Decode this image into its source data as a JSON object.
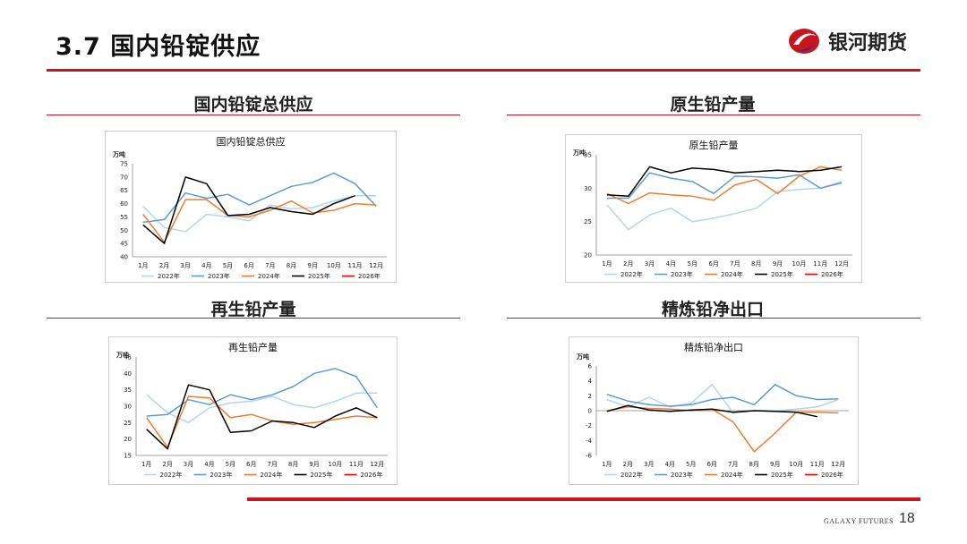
{
  "slide": {
    "title": "3.7  国内铅锭供应",
    "brand": "银河期货",
    "footer_brand": "GALAXY FUTURES",
    "page_number": "18"
  },
  "sections": [
    {
      "title": "国内铅锭总供应"
    },
    {
      "title": "原生铅产量"
    },
    {
      "title": "再生铅产量"
    },
    {
      "title": "精炼铅净出口"
    }
  ],
  "colors": {
    "accent": "#c8141e",
    "2022年": "#b8d4ea",
    "2023年": "#5b9bd5",
    "2024年": "#ed7d31",
    "2025年": "#000000",
    "2026年": "#ff0000"
  },
  "chart_data": [
    {
      "type": "line",
      "title": "国内铅锭总供应",
      "ylabel": "万吨",
      "categories": [
        "1月",
        "2月",
        "3月",
        "4月",
        "5月",
        "6月",
        "7月",
        "8月",
        "9月",
        "10月",
        "11月",
        "12月"
      ],
      "ylim": [
        40,
        75
      ],
      "yticks": [
        40,
        45,
        50,
        55,
        60,
        65,
        70,
        75
      ],
      "legend": "bottom",
      "series": [
        {
          "name": "2022年",
          "values": [
            59,
            51,
            49.5,
            56,
            55,
            53.5,
            59.5,
            58,
            58.5,
            61,
            63,
            63
          ]
        },
        {
          "name": "2023年",
          "values": [
            53,
            54,
            64,
            62,
            63.5,
            59.5,
            63,
            66.5,
            68,
            71.5,
            67.5,
            59
          ]
        },
        {
          "name": "2024年",
          "values": [
            56,
            45.5,
            61.5,
            61.5,
            55.5,
            55,
            57.5,
            61,
            56.5,
            57.5,
            60,
            59.5
          ]
        },
        {
          "name": "2025年",
          "values": [
            52,
            45,
            70,
            67.5,
            55.5,
            56,
            58.5,
            57,
            56,
            60,
            63,
            null
          ]
        },
        {
          "name": "2026年",
          "values": [
            null,
            null,
            null,
            null,
            null,
            null,
            null,
            null,
            null,
            null,
            null,
            null
          ]
        }
      ]
    },
    {
      "type": "line",
      "title": "原生铅产量",
      "ylabel": "万吨",
      "categories": [
        "1月",
        "2月",
        "3月",
        "4月",
        "5月",
        "6月",
        "7月",
        "8月",
        "9月",
        "10月",
        "11月",
        "12月"
      ],
      "ylim": [
        20,
        35
      ],
      "yticks": [
        20,
        25,
        30,
        35
      ],
      "legend": "bottom",
      "series": [
        {
          "name": "2022年",
          "values": [
            27.5,
            23.8,
            26,
            27,
            25,
            25.5,
            26.2,
            27,
            29.5,
            29.8,
            30,
            31
          ]
        },
        {
          "name": "2023年",
          "values": [
            28.5,
            28.5,
            32.3,
            31.5,
            31,
            29.2,
            31.8,
            31.7,
            31.5,
            32,
            30,
            30.8
          ]
        },
        {
          "name": "2024年",
          "values": [
            29.2,
            27.7,
            29.3,
            29,
            28.8,
            28.2,
            30.5,
            31.3,
            29.2,
            31.8,
            33.2,
            32.7
          ]
        },
        {
          "name": "2025年",
          "values": [
            29,
            28.8,
            33.2,
            32.3,
            33,
            32.8,
            32.3,
            32.5,
            32.7,
            32.5,
            32.7,
            33.2
          ]
        },
        {
          "name": "2026年",
          "values": [
            null,
            null,
            null,
            null,
            null,
            null,
            null,
            null,
            null,
            null,
            null,
            null
          ]
        }
      ]
    },
    {
      "type": "line",
      "title": "再生铅产量",
      "ylabel": "万吨",
      "categories": [
        "1月",
        "2月",
        "3月",
        "4月",
        "5月",
        "6月",
        "7月",
        "8月",
        "9月",
        "10月",
        "11月",
        "12月"
      ],
      "ylim": [
        15,
        45
      ],
      "yticks": [
        15,
        20,
        25,
        30,
        35,
        40,
        45
      ],
      "legend": "bottom",
      "series": [
        {
          "name": "2022年",
          "values": [
            33.5,
            28,
            25,
            29.5,
            31,
            31.5,
            33,
            30.5,
            29.5,
            31.5,
            34,
            34
          ]
        },
        {
          "name": "2023年",
          "values": [
            27,
            27.5,
            32,
            30.5,
            33.5,
            32,
            33.5,
            36,
            40,
            41.5,
            39,
            29.5
          ]
        },
        {
          "name": "2024年",
          "values": [
            26.5,
            17.5,
            33,
            32.5,
            26.5,
            27.5,
            25.5,
            24.5,
            25,
            26,
            27,
            26.5
          ]
        },
        {
          "name": "2025年",
          "values": [
            23,
            17,
            36.5,
            35,
            22,
            22.5,
            25.5,
            25,
            23.5,
            27,
            29.5,
            26.5
          ]
        },
        {
          "name": "2026年",
          "values": [
            null,
            null,
            null,
            null,
            null,
            null,
            null,
            null,
            null,
            null,
            null,
            null
          ]
        }
      ]
    },
    {
      "type": "line",
      "title": "精炼铅净出口",
      "ylabel": "万吨",
      "categories": [
        "1月",
        "2月",
        "3月",
        "4月",
        "5月",
        "6月",
        "7月",
        "8月",
        "9月",
        "10月",
        "11月",
        "12月"
      ],
      "ylim": [
        -6,
        6
      ],
      "yticks": [
        -6,
        -4,
        -2,
        0,
        2,
        4,
        6
      ],
      "legend": "bottom",
      "series": [
        {
          "name": "2022年",
          "values": [
            1.5,
            0.5,
            1.8,
            0.5,
            1,
            3.5,
            -0.3,
            0,
            0,
            0.2,
            0.5,
            1.5
          ]
        },
        {
          "name": "2023年",
          "values": [
            2.2,
            1.3,
            0.8,
            0.6,
            0.8,
            1.5,
            1.8,
            0.8,
            3.5,
            2,
            1.5,
            1.6
          ]
        },
        {
          "name": "2024年",
          "values": [
            0,
            0.5,
            0.3,
            0.2,
            0,
            0.2,
            -1.5,
            -5.5,
            -3,
            -0.2,
            -0.2,
            -0.3
          ]
        },
        {
          "name": "2025年",
          "values": [
            -0.1,
            0.7,
            0.1,
            -0.1,
            0.1,
            0.2,
            -0.2,
            0,
            -0.1,
            -0.2,
            -0.8,
            null
          ]
        },
        {
          "name": "2026年",
          "values": [
            null,
            null,
            null,
            null,
            null,
            null,
            null,
            null,
            null,
            null,
            null,
            null
          ]
        }
      ]
    }
  ]
}
